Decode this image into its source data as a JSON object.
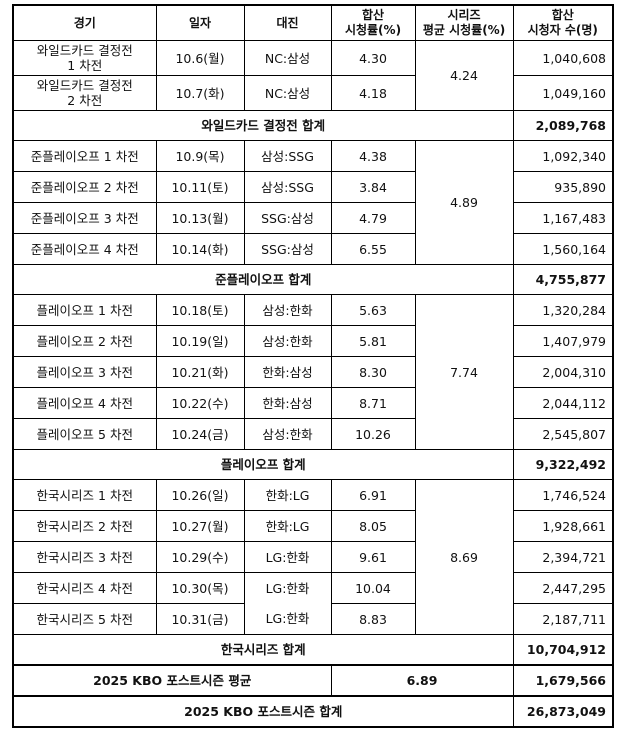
{
  "headers": [
    "경기",
    "일자",
    "대진",
    "합산\n시청률(%)",
    "시리즈\n평균 시청률(%)",
    "합산\n시청자 수(명)"
  ],
  "series": [
    {
      "games": [
        {
          "name": "와일드카드 결정전\n1 차전",
          "date": "10.6(월)",
          "match": "NC:삼성",
          "rating": "4.30",
          "viewers": "1,040,608"
        },
        {
          "name": "와일드카드 결정전\n2 차전",
          "date": "10.7(화)",
          "match": "NC:삼성",
          "rating": "4.18",
          "viewers": "1,049,160"
        }
      ],
      "avg": "4.24",
      "total_label": "와일드카드 결정전 합계",
      "total": "2,089,768"
    },
    {
      "games": [
        {
          "name": "준플레이오프 1 차전",
          "date": "10.9(목)",
          "match": "삼성:SSG",
          "rating": "4.38",
          "viewers": "1,092,340"
        },
        {
          "name": "준플레이오프 2 차전",
          "date": "10.11(토)",
          "match": "삼성:SSG",
          "rating": "3.84",
          "viewers": "935,890"
        },
        {
          "name": "준플레이오프 3 차전",
          "date": "10.13(월)",
          "match": "SSG:삼성",
          "rating": "4.79",
          "viewers": "1,167,483"
        },
        {
          "name": "준플레이오프 4 차전",
          "date": "10.14(화)",
          "match": "SSG:삼성",
          "rating": "6.55",
          "viewers": "1,560,164"
        }
      ],
      "avg": "4.89",
      "total_label": "준플레이오프 합계",
      "total": "4,755,877"
    },
    {
      "games": [
        {
          "name": "플레이오프 1 차전",
          "date": "10.18(토)",
          "match": "삼성:한화",
          "rating": "5.63",
          "viewers": "1,320,284"
        },
        {
          "name": "플레이오프 2 차전",
          "date": "10.19(일)",
          "match": "삼성:한화",
          "rating": "5.81",
          "viewers": "1,407,979"
        },
        {
          "name": "플레이오프 3 차전",
          "date": "10.21(화)",
          "match": "한화:삼성",
          "rating": "8.30",
          "viewers": "2,004,310"
        },
        {
          "name": "플레이오프 4 차전",
          "date": "10.22(수)",
          "match": "한화:삼성",
          "rating": "8.71",
          "viewers": "2,044,112"
        },
        {
          "name": "플레이오프 5 차전",
          "date": "10.24(금)",
          "match": "삼성:한화",
          "rating": "10.26",
          "viewers": "2,545,807"
        }
      ],
      "avg": "7.74",
      "total_label": "플레이오프 합계",
      "total": "9,322,492"
    },
    {
      "games": [
        {
          "name": "한국시리즈 1 차전",
          "date": "10.26(일)",
          "match": "한화:LG",
          "rating": "6.91",
          "viewers": "1,746,524"
        },
        {
          "name": "한국시리즈 2 차전",
          "date": "10.27(월)",
          "match": "한화:LG",
          "rating": "8.05",
          "viewers": "1,928,661"
        },
        {
          "name": "한국시리즈 3 차전",
          "date": "10.29(수)",
          "match": "LG:한화",
          "rating": "9.61",
          "viewers": "2,394,721"
        },
        {
          "name": "한국시리즈 4 차전",
          "date": "10.30(목)",
          "match": "LG:한화",
          "rating": "10.04",
          "viewers": "2,447,295"
        },
        {
          "name": "한국시리즈 5 차전",
          "date": "10.31(금)",
          "match": "LG:한화",
          "rating": "8.83",
          "viewers": "2,187,711"
        }
      ],
      "avg": "8.69",
      "total_label": "한국시리즈 합계",
      "total": "10,704,912"
    }
  ],
  "season_avg": {
    "label": "2025 KBO 포스트시즌 평균",
    "rating": "6.89",
    "viewers": "1,679,566"
  },
  "season_total": {
    "label": "2025 KBO 포스트시즌 합계",
    "viewers": "26,873,049"
  }
}
